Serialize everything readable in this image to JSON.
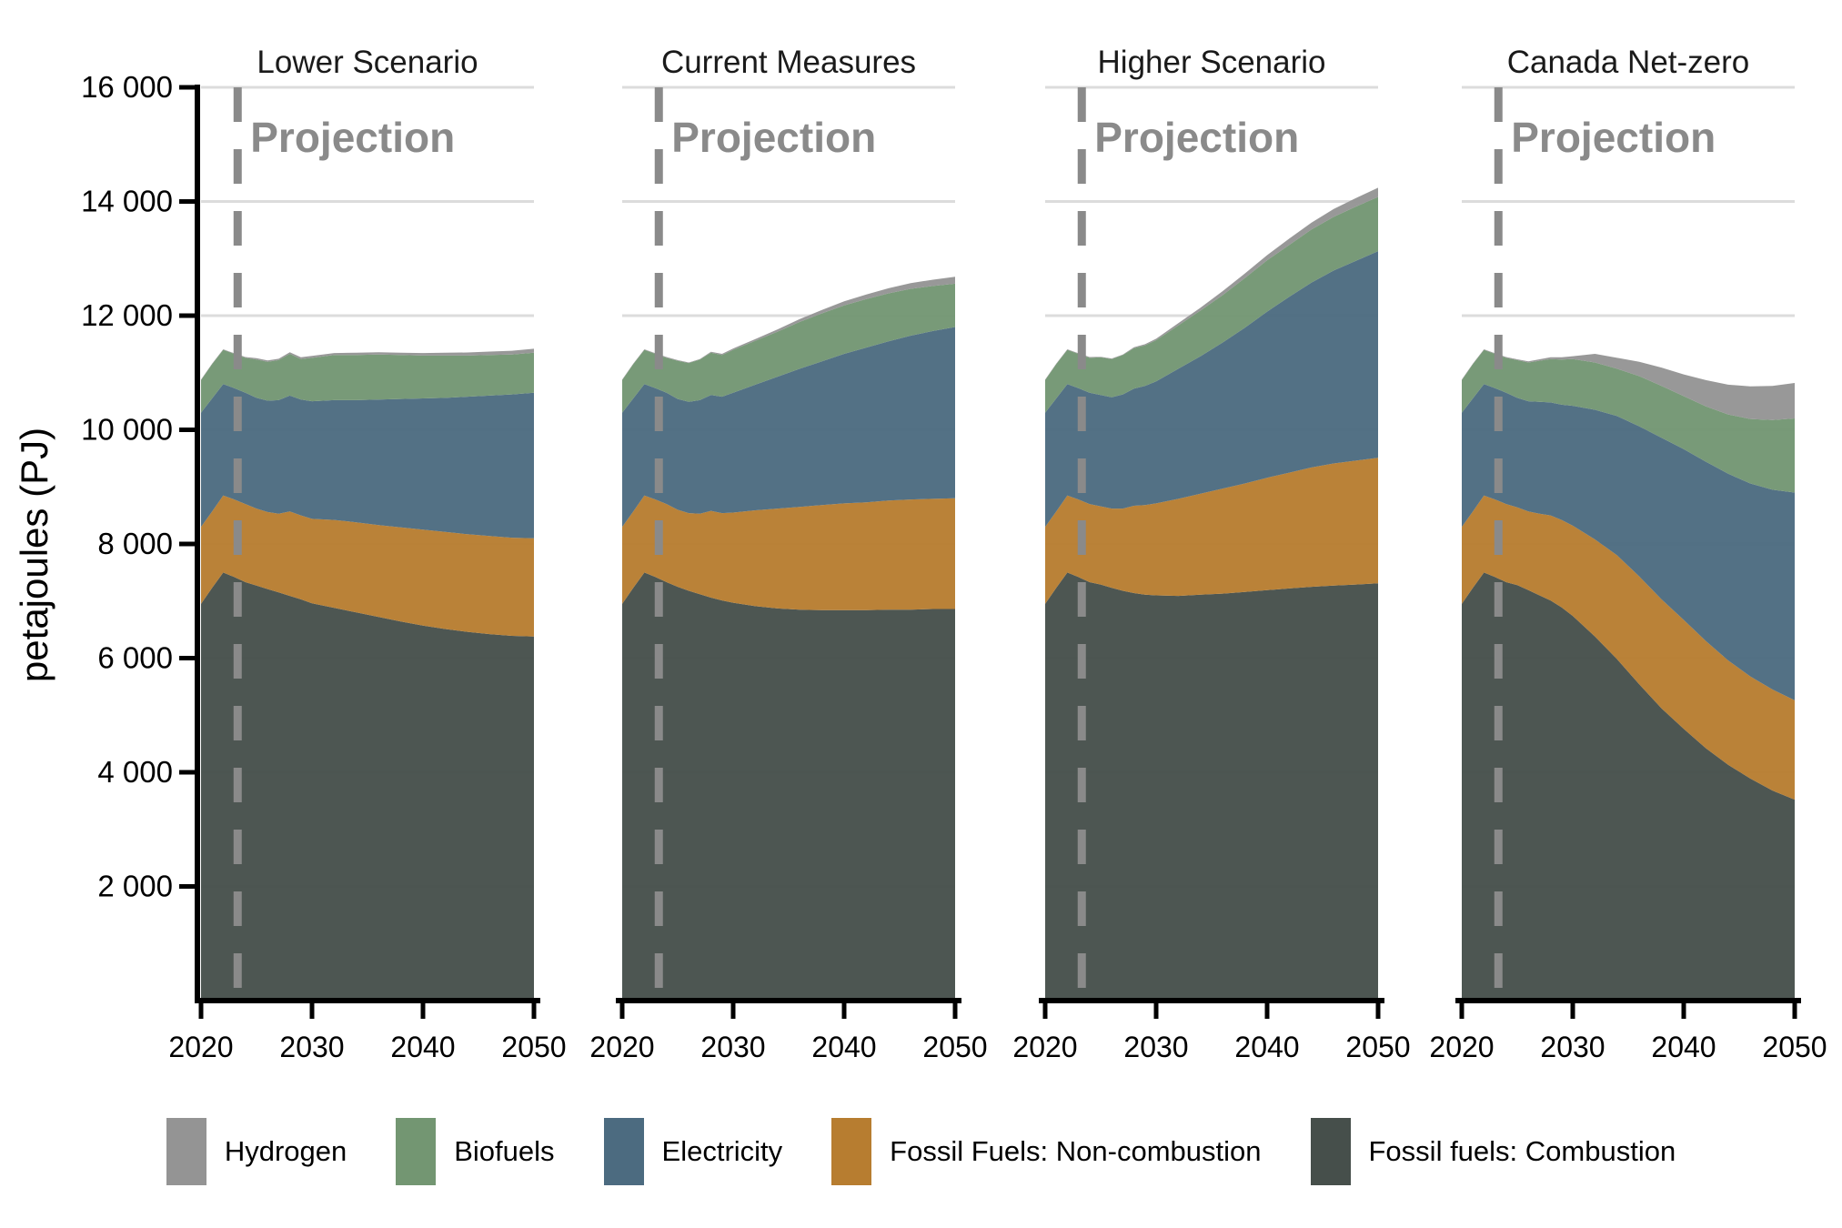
{
  "chart_data": {
    "type": "area",
    "stacked": true,
    "title": "",
    "ylabel": "petajoules (PJ)",
    "ylim": [
      0,
      16000
    ],
    "ytick_step": 2000,
    "ytick_labels": [
      "2 000",
      "4 000",
      "6 000",
      "8 000",
      "10 000",
      "12 000",
      "14 000",
      "16 000"
    ],
    "xlim": [
      2020,
      2050
    ],
    "xticks": [
      "2020",
      "2030",
      "2040",
      "2050"
    ],
    "grid": true,
    "legend_position": "bottom",
    "projection": {
      "year": 2023.3,
      "label": "Projection"
    },
    "years": [
      2020,
      2021,
      2022,
      2023,
      2024,
      2025,
      2026,
      2027,
      2028,
      2029,
      2030,
      2032,
      2034,
      2036,
      2038,
      2040,
      2042,
      2044,
      2046,
      2048,
      2050
    ],
    "series_keys": [
      "combustion",
      "non_combustion",
      "electricity",
      "biofuels",
      "hydrogen"
    ],
    "series_labels": {
      "combustion": "Fossil fuels: Combustion",
      "non_combustion": "Fossil Fuels: Non-combustion",
      "electricity": "Electricity",
      "biofuels": "Biofuels",
      "hydrogen": "Hydrogen"
    },
    "units": "PJ",
    "panels": [
      {
        "title": "Lower Scenario",
        "series": {
          "combustion": [
            6950,
            7230,
            7500,
            7420,
            7330,
            7270,
            7210,
            7150,
            7090,
            7030,
            6960,
            6880,
            6800,
            6720,
            6640,
            6570,
            6510,
            6460,
            6420,
            6390,
            6380
          ],
          "non_combustion": [
            1350,
            1340,
            1350,
            1360,
            1370,
            1350,
            1350,
            1380,
            1480,
            1470,
            1480,
            1540,
            1580,
            1610,
            1650,
            1680,
            1700,
            1710,
            1720,
            1720,
            1720
          ],
          "electricity": [
            2000,
            1980,
            1950,
            1950,
            1950,
            1940,
            1950,
            1990,
            2030,
            2030,
            2060,
            2100,
            2140,
            2200,
            2250,
            2300,
            2350,
            2410,
            2460,
            2510,
            2550
          ],
          "biofuels": [
            570,
            600,
            600,
            600,
            610,
            670,
            680,
            700,
            730,
            710,
            760,
            790,
            790,
            790,
            770,
            750,
            740,
            720,
            710,
            700,
            700
          ],
          "hydrogen": [
            10,
            10,
            10,
            10,
            15,
            25,
            25,
            25,
            30,
            30,
            35,
            35,
            40,
            40,
            40,
            45,
            50,
            55,
            60,
            65,
            70
          ]
        }
      },
      {
        "title": "Current Measures",
        "series": {
          "combustion": [
            6950,
            7230,
            7500,
            7420,
            7330,
            7250,
            7180,
            7120,
            7060,
            7010,
            6970,
            6910,
            6870,
            6850,
            6840,
            6840,
            6840,
            6850,
            6850,
            6860,
            6860
          ],
          "non_combustion": [
            1350,
            1340,
            1350,
            1360,
            1370,
            1350,
            1360,
            1410,
            1520,
            1530,
            1580,
            1680,
            1750,
            1800,
            1840,
            1870,
            1890,
            1910,
            1930,
            1930,
            1940
          ],
          "electricity": [
            2000,
            1980,
            1950,
            1950,
            1950,
            1940,
            1950,
            1990,
            2030,
            2040,
            2100,
            2200,
            2310,
            2420,
            2520,
            2620,
            2710,
            2790,
            2870,
            2940,
            3000
          ],
          "biofuels": [
            570,
            600,
            600,
            600,
            610,
            670,
            680,
            710,
            740,
            730,
            750,
            770,
            790,
            820,
            840,
            850,
            850,
            840,
            820,
            790,
            760
          ],
          "hydrogen": [
            10,
            10,
            10,
            10,
            15,
            10,
            10,
            10,
            15,
            20,
            25,
            30,
            40,
            50,
            60,
            70,
            80,
            90,
            100,
            110,
            120
          ]
        }
      },
      {
        "title": "Higher Scenario",
        "series": {
          "combustion": [
            6950,
            7230,
            7500,
            7420,
            7330,
            7290,
            7230,
            7180,
            7140,
            7110,
            7100,
            7090,
            7110,
            7130,
            7160,
            7190,
            7220,
            7250,
            7270,
            7290,
            7310
          ],
          "non_combustion": [
            1350,
            1340,
            1350,
            1360,
            1370,
            1370,
            1390,
            1440,
            1530,
            1570,
            1610,
            1700,
            1770,
            1840,
            1900,
            1970,
            2030,
            2090,
            2140,
            2170,
            2200
          ],
          "electricity": [
            2000,
            1980,
            1950,
            1950,
            1950,
            1950,
            1950,
            2000,
            2050,
            2090,
            2140,
            2280,
            2410,
            2560,
            2730,
            2910,
            3080,
            3240,
            3380,
            3500,
            3620
          ],
          "biofuels": [
            570,
            600,
            600,
            600,
            610,
            660,
            670,
            690,
            710,
            710,
            720,
            760,
            800,
            830,
            870,
            900,
            910,
            930,
            940,
            950,
            950
          ],
          "hydrogen": [
            10,
            10,
            10,
            10,
            15,
            10,
            10,
            10,
            15,
            20,
            25,
            40,
            50,
            70,
            80,
            90,
            110,
            120,
            140,
            150,
            160
          ]
        }
      },
      {
        "title": "Canada Net-zero",
        "series": {
          "combustion": [
            6950,
            7230,
            7500,
            7420,
            7330,
            7280,
            7190,
            7100,
            7010,
            6890,
            6740,
            6380,
            5980,
            5540,
            5120,
            4760,
            4420,
            4130,
            3890,
            3680,
            3520
          ],
          "non_combustion": [
            1350,
            1340,
            1350,
            1360,
            1370,
            1360,
            1380,
            1430,
            1490,
            1530,
            1580,
            1700,
            1820,
            1890,
            1910,
            1910,
            1880,
            1830,
            1790,
            1770,
            1740
          ],
          "electricity": [
            2000,
            1980,
            1950,
            1950,
            1950,
            1920,
            1930,
            1960,
            1980,
            2020,
            2100,
            2270,
            2440,
            2630,
            2830,
            2990,
            3140,
            3270,
            3380,
            3500,
            3640
          ],
          "biofuels": [
            570,
            600,
            600,
            600,
            610,
            660,
            680,
            720,
            760,
            790,
            820,
            830,
            830,
            880,
            910,
            930,
            970,
            1040,
            1130,
            1220,
            1300
          ],
          "hydrogen": [
            10,
            10,
            10,
            10,
            15,
            15,
            20,
            25,
            30,
            40,
            50,
            150,
            190,
            250,
            320,
            380,
            460,
            520,
            570,
            600,
            620
          ]
        }
      }
    ]
  },
  "legend": {
    "items": [
      {
        "key": "hydrogen",
        "label": "Hydrogen",
        "color": "#949494"
      },
      {
        "key": "biofuels",
        "label": "Biofuels",
        "color": "#739672"
      },
      {
        "key": "electricity",
        "label": "Electricity",
        "color": "#4c6b80"
      },
      {
        "key": "non_combustion",
        "label": "Fossil Fuels: Non-combustion",
        "color": "#b77d30"
      },
      {
        "key": "combustion",
        "label": "Fossil fuels: Combustion",
        "color": "#464f4b"
      }
    ]
  },
  "colors": {
    "hydrogen": "#949494",
    "biofuels": "#739672",
    "electricity": "#4c6b80",
    "non_combustion": "#b77d30",
    "combustion": "#464f4b",
    "gridline": "#dcdcdc",
    "axis": "#000000",
    "projection": "#8a8a8a",
    "panel_title": "#1a1a1a"
  }
}
